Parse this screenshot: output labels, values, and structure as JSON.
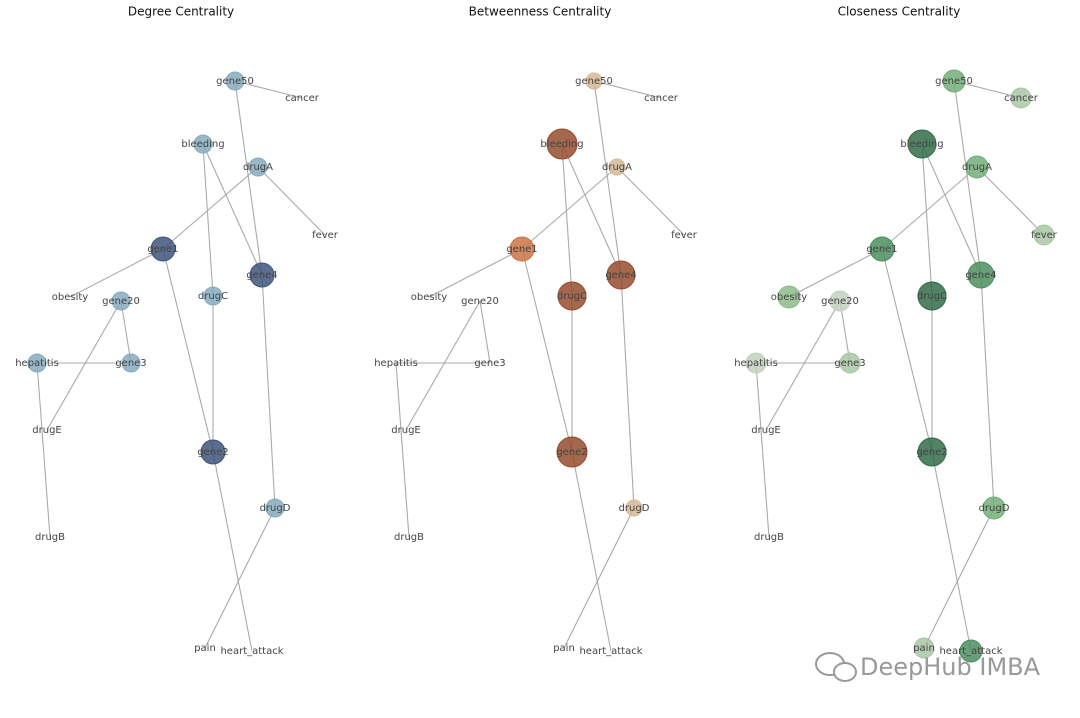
{
  "panels": [
    {
      "title": "Degree Centrality",
      "nodes": [
        {
          "label": "gene50"
        },
        {
          "label": "cancer"
        },
        {
          "label": "bleeding"
        },
        {
          "label": "drugA"
        },
        {
          "label": "fever"
        },
        {
          "label": "gene1"
        },
        {
          "label": "gene4"
        },
        {
          "label": "obesity"
        },
        {
          "label": "gene20"
        },
        {
          "label": "drugC"
        },
        {
          "label": "hepatitis"
        },
        {
          "label": "gene3"
        },
        {
          "label": "drugE"
        },
        {
          "label": "gene2"
        },
        {
          "label": "drugD"
        },
        {
          "label": "drugB"
        },
        {
          "label": "pain"
        },
        {
          "label": "heart_attack"
        }
      ]
    },
    {
      "title": "Betweenness Centrality",
      "nodes": [
        {
          "label": "gene50"
        },
        {
          "label": "cancer"
        },
        {
          "label": "bleeding"
        },
        {
          "label": "drugA"
        },
        {
          "label": "fever"
        },
        {
          "label": "gene1"
        },
        {
          "label": "gene4"
        },
        {
          "label": "obesity"
        },
        {
          "label": "gene20"
        },
        {
          "label": "drugC"
        },
        {
          "label": "hepatitis"
        },
        {
          "label": "gene3"
        },
        {
          "label": "drugE"
        },
        {
          "label": "gene2"
        },
        {
          "label": "drugD"
        },
        {
          "label": "drugB"
        },
        {
          "label": "pain"
        },
        {
          "label": "heart_attack"
        }
      ]
    },
    {
      "title": "Closeness Centrality",
      "nodes": [
        {
          "label": "gene50"
        },
        {
          "label": "cancer"
        },
        {
          "label": "bleeding"
        },
        {
          "label": "drugA"
        },
        {
          "label": "fever"
        },
        {
          "label": "gene1"
        },
        {
          "label": "gene4"
        },
        {
          "label": "obesity"
        },
        {
          "label": "gene20"
        },
        {
          "label": "drugC"
        },
        {
          "label": "hepatitis"
        },
        {
          "label": "gene3"
        },
        {
          "label": "drugE"
        },
        {
          "label": "gene2"
        },
        {
          "label": "drugD"
        },
        {
          "label": "drugB"
        },
        {
          "label": "pain"
        },
        {
          "label": "heart_attack"
        }
      ]
    }
  ],
  "watermark": "DeepHub IMBA"
}
